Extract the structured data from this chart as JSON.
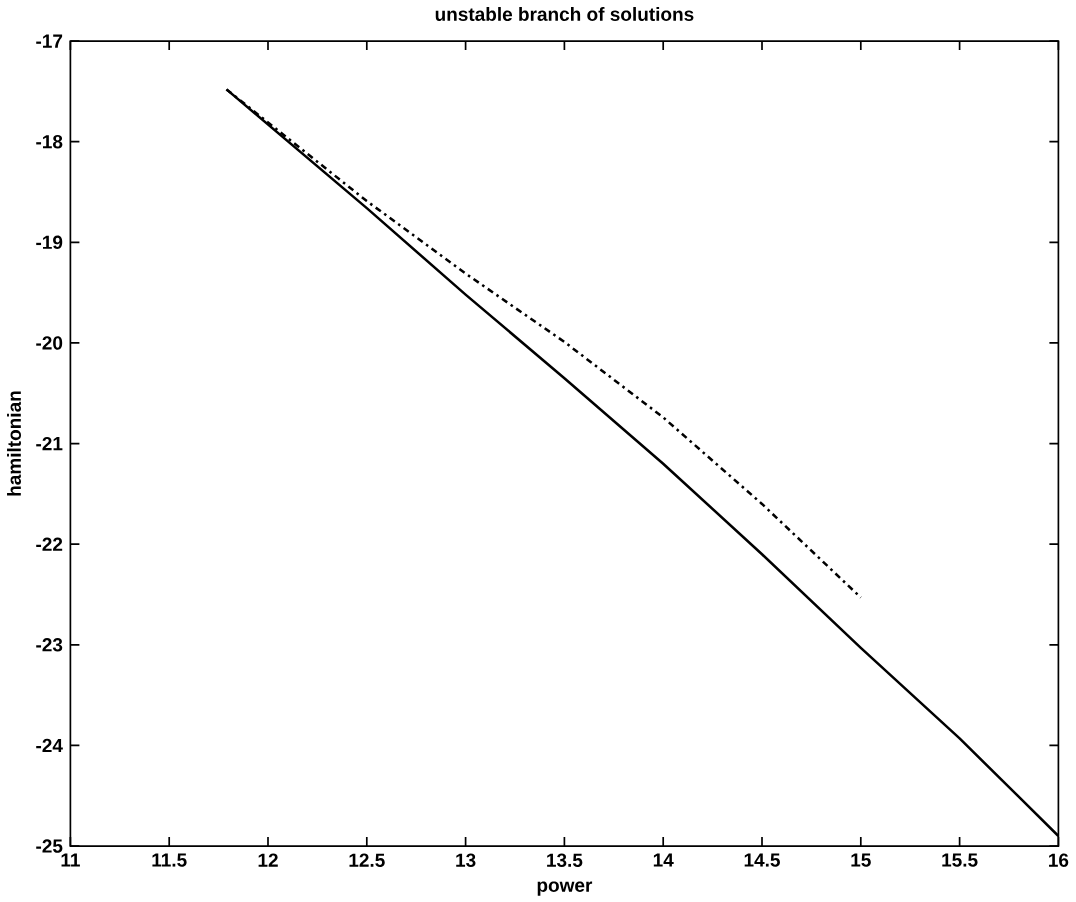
{
  "chart_data": {
    "type": "line",
    "title": "unstable branch of solutions",
    "xlabel": "power",
    "ylabel": "hamiltonian",
    "xlim": [
      11,
      16
    ],
    "ylim": [
      -25,
      -17
    ],
    "xticks": [
      11,
      11.5,
      12,
      12.5,
      13,
      13.5,
      14,
      14.5,
      15,
      15.5,
      16
    ],
    "yticks": [
      -25,
      -24,
      -23,
      -22,
      -21,
      -20,
      -19,
      -18,
      -17
    ],
    "grid": false,
    "marker": "none",
    "series": [
      {
        "color": "#000000",
        "line_style": "solid",
        "x": [
          11.79,
          12.5,
          13,
          13.5,
          14,
          14.5,
          15,
          15.5,
          16
        ],
        "values": [
          -17.48,
          -18.66,
          -19.52,
          -20.35,
          -21.2,
          -22.1,
          -23.03,
          -23.93,
          -24.9
        ]
      },
      {
        "color": "#000000",
        "line_style": "dashdot",
        "x": [
          11.79,
          12.5,
          13,
          13.5,
          14,
          14.5,
          15
        ],
        "values": [
          -17.48,
          -18.59,
          -19.31,
          -19.99,
          -20.74,
          -21.6,
          -22.53
        ]
      }
    ]
  }
}
